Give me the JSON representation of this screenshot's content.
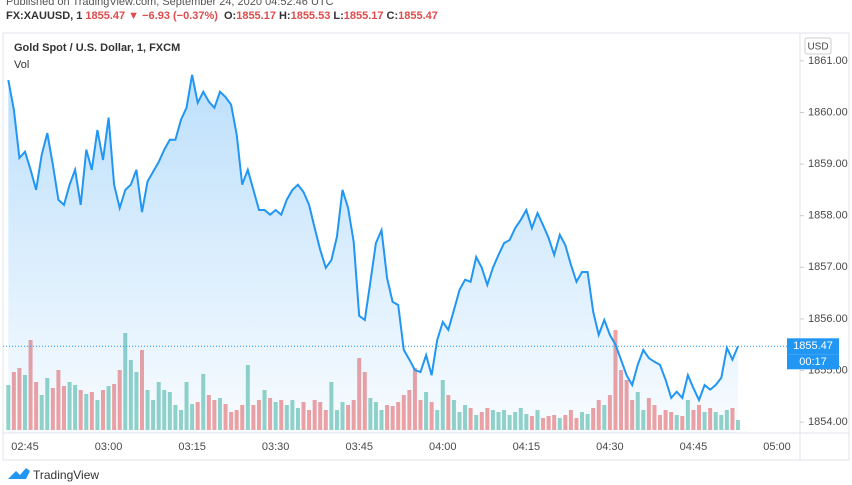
{
  "header": {
    "published": "Published on TradingView.com, September 24, 2020 04:52:46 UTC",
    "symbol": "FX:XAUUSD, 1",
    "last": 1855.47,
    "change": "−6.93 (−0.37%)",
    "ohlc": [
      {
        "key": "O:",
        "value": 1855.17
      },
      {
        "key": "H:",
        "value": 1855.53
      },
      {
        "key": "L:",
        "value": 1855.17
      },
      {
        "key": "C:",
        "value": 1855.47
      }
    ]
  },
  "footer": {
    "brand": "TradingView"
  },
  "chart_data": {
    "type": "line",
    "title": "Gold Spot / U.S. Dollar, 1, FXCM",
    "volume_label": "Vol",
    "currency": "USD",
    "categories": [
      null,
      null,
      null,
      "02:45",
      null,
      null,
      null,
      null,
      null,
      null,
      null,
      null,
      null,
      null,
      null,
      null,
      null,
      null,
      "03:00",
      null,
      null,
      null,
      null,
      null,
      null,
      null,
      null,
      null,
      null,
      null,
      null,
      null,
      null,
      "03:15",
      null,
      null,
      null,
      null,
      null,
      null,
      null,
      null,
      null,
      null,
      null,
      null,
      null,
      null,
      "03:30",
      null,
      null,
      null,
      null,
      null,
      null,
      null,
      null,
      null,
      null,
      null,
      null,
      null,
      null,
      "03:45",
      null,
      null,
      null,
      null,
      null,
      null,
      null,
      null,
      null,
      null,
      null,
      null,
      null,
      null,
      "04:00",
      null,
      null,
      null,
      null,
      null,
      null,
      null,
      null,
      null,
      null,
      null,
      null,
      null,
      null,
      "04:15",
      null,
      null,
      null,
      null,
      null,
      null,
      null,
      null,
      null,
      null,
      null,
      null,
      null,
      null,
      "04:30",
      null,
      null,
      null,
      null,
      null,
      null,
      null,
      null,
      null,
      null,
      null,
      null,
      null,
      null,
      "04:45",
      null,
      null,
      null,
      null,
      null,
      null,
      null,
      null,
      null,
      null,
      null,
      null,
      null,
      null,
      "05:00"
    ],
    "series": [
      {
        "name": "Gold Spot / U.S. Dollar",
        "color": "#2196f3",
        "values": [
          1860.63,
          1860.05,
          1859.12,
          1859.24,
          1858.89,
          1858.5,
          1859.18,
          1859.6,
          1858.98,
          1858.31,
          1858.21,
          1858.6,
          1858.89,
          1858.21,
          1859.28,
          1858.89,
          1859.66,
          1859.08,
          1859.9,
          1858.6,
          1858.15,
          1858.5,
          1858.6,
          1858.89,
          1858.07,
          1858.66,
          1858.85,
          1859.04,
          1859.28,
          1859.47,
          1859.47,
          1859.86,
          1860.09,
          1860.73,
          1860.19,
          1860.4,
          1860.21,
          1860.09,
          1860.4,
          1860.3,
          1860.15,
          1859.57,
          1858.6,
          1858.89,
          1858.5,
          1858.11,
          1858.11,
          1858.02,
          1858.11,
          1858.02,
          1858.31,
          1858.5,
          1858.6,
          1858.46,
          1858.21,
          1857.76,
          1857.34,
          1856.99,
          1857.14,
          1857.59,
          1858.5,
          1858.15,
          1857.49,
          1856.06,
          1855.98,
          1856.72,
          1857.47,
          1857.72,
          1856.79,
          1856.33,
          1856.27,
          1855.4,
          1855.21,
          1855.01,
          1854.97,
          1855.3,
          1854.91,
          1855.59,
          1855.94,
          1855.79,
          1856.17,
          1856.56,
          1856.76,
          1856.72,
          1857.2,
          1856.99,
          1856.66,
          1856.99,
          1857.24,
          1857.47,
          1857.53,
          1857.76,
          1857.92,
          1858.11,
          1857.76,
          1858.05,
          1857.82,
          1857.57,
          1857.24,
          1857.63,
          1857.43,
          1857.05,
          1856.72,
          1856.91,
          1856.91,
          1856.14,
          1855.69,
          1855.98,
          1855.69,
          1855.5,
          1855.21,
          1854.91,
          1854.72,
          1855.11,
          1855.4,
          1855.24,
          1855.17,
          1855.11,
          1854.82,
          1854.47,
          1854.59,
          1854.47,
          1854.91,
          1854.66,
          1854.43,
          1854.72,
          1854.63,
          1854.72,
          1854.86,
          1855.44,
          1855.21,
          1855.47,
          null,
          null,
          null,
          null,
          null,
          null,
          null
        ]
      },
      {
        "name": "Vol",
        "up_color": "#93d3c8",
        "down_color": "#f2a1a1",
        "values": [
          45,
          58,
          62,
          55,
          90,
          48,
          35,
          52,
          42,
          60,
          44,
          48,
          45,
          40,
          36,
          38,
          30,
          40,
          44,
          46,
          60,
          97,
          70,
          58,
          80,
          40,
          30,
          48,
          40,
          38,
          25,
          20,
          48,
          26,
          28,
          56,
          35,
          30,
          32,
          26,
          18,
          20,
          25,
          65,
          25,
          30,
          40,
          32,
          28,
          30,
          25,
          30,
          22,
          28,
          20,
          30,
          28,
          20,
          48,
          20,
          28,
          25,
          30,
          72,
          58,
          32,
          28,
          20,
          25,
          24,
          28,
          35,
          40,
          62,
          30,
          38,
          28,
          20,
          50,
          35,
          30,
          18,
          25,
          22,
          15,
          18,
          22,
          20,
          18,
          20,
          15,
          18,
          22,
          16,
          14,
          20,
          12,
          14,
          15,
          12,
          15,
          20,
          12,
          18,
          16,
          22,
          30,
          25,
          35,
          100,
          60,
          50,
          30,
          38,
          20,
          32,
          25,
          15,
          20,
          18,
          15,
          14,
          30,
          20,
          25,
          18,
          22,
          18,
          15,
          20,
          22,
          10,
          null,
          null,
          null,
          null,
          null,
          null,
          null
        ]
      }
    ],
    "ylim": [
      1853.79,
      1861.54
    ],
    "yticks": [
      {
        "value": 1854,
        "label": "1854.00"
      },
      {
        "value": 1855,
        "label": "1855.00"
      },
      {
        "value": 1856,
        "label": "1856.00"
      },
      {
        "value": 1857,
        "label": "1857.00"
      },
      {
        "value": 1858,
        "label": "1858.00"
      },
      {
        "value": 1859,
        "label": "1859.00"
      },
      {
        "value": 1860,
        "label": "1860.00"
      },
      {
        "value": 1861,
        "label": "1861.00"
      }
    ],
    "last_price": 1855.47,
    "countdown": "00:17",
    "area_fill": true
  }
}
